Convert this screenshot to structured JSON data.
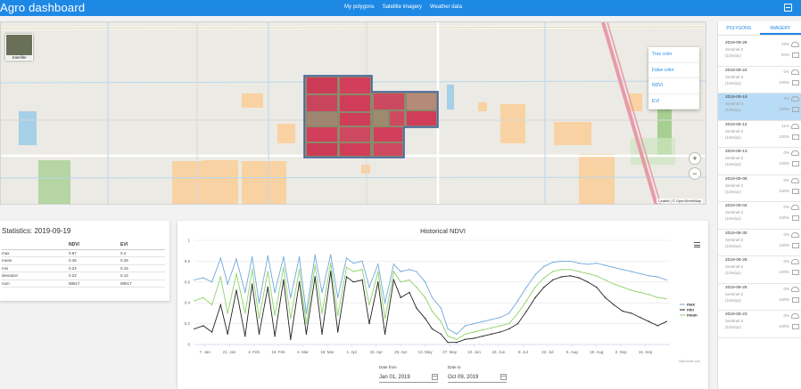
{
  "header": {
    "brand": "Agro dashboard",
    "nav": [
      "My polygons",
      "Satellite imagery",
      "Weather data"
    ],
    "exit_icon": "exit-icon"
  },
  "map": {
    "layer_thumb_label": "Satellite",
    "layers": [
      "True color",
      "False color",
      "NDVI",
      "EVI"
    ],
    "zoom_in": "+",
    "zoom_out": "−",
    "attribution": "Leaflet | © OpenStreetMap"
  },
  "sidebar": {
    "tabs": [
      "POLYGONS",
      "IMAGERY"
    ],
    "items": [
      {
        "date": "2019-09-28",
        "sat": "Sentinel-2",
        "res": "(10m/px)",
        "p1": "15%",
        "p2": "94%"
      },
      {
        "date": "2019-09-24",
        "sat": "Sentinel-2",
        "res": "(10m/px)",
        "p1": "0%",
        "p2": "100%"
      },
      {
        "date": "2019-09-19",
        "sat": "Sentinel-2",
        "res": "(10m/px)",
        "p1": "0%",
        "p2": "100%"
      },
      {
        "date": "2019-09-14",
        "sat": "Sentinel-2",
        "res": "(10m/px)",
        "p1": "11%",
        "p2": "100%"
      },
      {
        "date": "2019-09-13",
        "sat": "Sentinel-2",
        "res": "(10m/px)",
        "p1": "0%",
        "p2": "100%"
      },
      {
        "date": "2019-09-08",
        "sat": "Sentinel-2",
        "res": "(10m/px)",
        "p1": "0%",
        "p2": "100%"
      },
      {
        "date": "2019-09-04",
        "sat": "Sentinel-2",
        "res": "(10m/px)",
        "p1": "0%",
        "p2": "100%"
      },
      {
        "date": "2019-08-30",
        "sat": "Sentinel-2",
        "res": "(10m/px)",
        "p1": "0%",
        "p2": "100%"
      },
      {
        "date": "2019-08-28",
        "sat": "Sentinel-2",
        "res": "(10m/px)",
        "p1": "0%",
        "p2": "100%"
      },
      {
        "date": "2019-08-25",
        "sat": "Sentinel-2",
        "res": "(10m/px)",
        "p1": "0%",
        "p2": "100%"
      },
      {
        "date": "2019-08-23",
        "sat": "Sentinel-2",
        "res": "(10m/px)",
        "p1": "0%",
        "p2": "100%"
      }
    ]
  },
  "stats": {
    "title": "Statistics: 2019-09-19",
    "columns": [
      "",
      "NDVI",
      "EVI"
    ],
    "rows": [
      [
        "max",
        "0.87",
        "0.4"
      ],
      [
        "mean",
        "0.45",
        "0.25"
      ],
      [
        "min",
        "0.24",
        "0.15"
      ],
      [
        "deviation",
        "0.22",
        "0.12"
      ],
      [
        "num",
        "88517",
        "88517"
      ]
    ]
  },
  "chart_panel": {
    "title": "Historical NDVI",
    "credit": "Highcharts.com",
    "date_from_label": "Date from",
    "date_from": "Jan 01, 2019",
    "date_to_label": "Date to",
    "date_to": "Oct 09, 2019"
  },
  "chart_data": {
    "type": "line",
    "title": "Historical NDVI",
    "ylim": [
      0,
      1
    ],
    "yticks": [
      "0",
      "0.2",
      "0.4",
      "0.6",
      "0.8",
      "1"
    ],
    "xticks": [
      "7. Jan",
      "21. Jan",
      "4. Feb",
      "18. Feb",
      "4. Mar",
      "18. Mar",
      "1. Apr",
      "15. Apr",
      "29. Apr",
      "13. May",
      "27. May",
      "10. Jun",
      "24. Jun",
      "8. Jul",
      "22. Jul",
      "5. Aug",
      "19. Aug",
      "2. Sep",
      "16. Sep"
    ],
    "xrange": [
      0,
      272
    ],
    "grid": true,
    "legend": "right",
    "series": [
      {
        "name": "max",
        "color": "#6fa8dc",
        "points": [
          [
            0,
            0.62
          ],
          [
            5,
            0.64
          ],
          [
            10,
            0.6
          ],
          [
            15,
            0.83
          ],
          [
            19,
            0.58
          ],
          [
            24,
            0.82
          ],
          [
            29,
            0.5
          ],
          [
            33,
            0.84
          ],
          [
            37,
            0.4
          ],
          [
            42,
            0.85
          ],
          [
            46,
            0.5
          ],
          [
            51,
            0.84
          ],
          [
            55,
            0.45
          ],
          [
            60,
            0.84
          ],
          [
            64,
            0.3
          ],
          [
            69,
            0.86
          ],
          [
            73,
            0.5
          ],
          [
            78,
            0.86
          ],
          [
            82,
            0.45
          ],
          [
            87,
            0.83
          ],
          [
            91,
            0.78
          ],
          [
            96,
            0.8
          ],
          [
            100,
            0.55
          ],
          [
            105,
            0.77
          ],
          [
            109,
            0.4
          ],
          [
            114,
            0.77
          ],
          [
            118,
            0.7
          ],
          [
            123,
            0.72
          ],
          [
            127,
            0.7
          ],
          [
            132,
            0.6
          ],
          [
            136,
            0.45
          ],
          [
            141,
            0.35
          ],
          [
            145,
            0.15
          ],
          [
            150,
            0.1
          ],
          [
            155,
            0.18
          ],
          [
            160,
            0.2
          ],
          [
            165,
            0.22
          ],
          [
            170,
            0.24
          ],
          [
            175,
            0.26
          ],
          [
            180,
            0.3
          ],
          [
            185,
            0.42
          ],
          [
            190,
            0.55
          ],
          [
            195,
            0.67
          ],
          [
            200,
            0.75
          ],
          [
            205,
            0.79
          ],
          [
            210,
            0.8
          ],
          [
            215,
            0.8
          ],
          [
            220,
            0.78
          ],
          [
            225,
            0.77
          ],
          [
            230,
            0.78
          ],
          [
            235,
            0.76
          ],
          [
            240,
            0.74
          ],
          [
            245,
            0.72
          ],
          [
            250,
            0.7
          ],
          [
            255,
            0.68
          ],
          [
            260,
            0.66
          ],
          [
            265,
            0.65
          ],
          [
            270,
            0.62
          ]
        ]
      },
      {
        "name": "min",
        "color": "#222222",
        "points": [
          [
            0,
            0.15
          ],
          [
            5,
            0.18
          ],
          [
            10,
            0.12
          ],
          [
            15,
            0.38
          ],
          [
            19,
            0.1
          ],
          [
            24,
            0.52
          ],
          [
            29,
            0.08
          ],
          [
            33,
            0.58
          ],
          [
            37,
            0.1
          ],
          [
            42,
            0.55
          ],
          [
            46,
            0.08
          ],
          [
            51,
            0.62
          ],
          [
            55,
            0.05
          ],
          [
            60,
            0.6
          ],
          [
            64,
            0.1
          ],
          [
            69,
            0.65
          ],
          [
            73,
            0.1
          ],
          [
            78,
            0.7
          ],
          [
            82,
            0.12
          ],
          [
            87,
            0.65
          ],
          [
            91,
            0.6
          ],
          [
            96,
            0.62
          ],
          [
            100,
            0.2
          ],
          [
            105,
            0.6
          ],
          [
            109,
            0.1
          ],
          [
            114,
            0.62
          ],
          [
            118,
            0.45
          ],
          [
            123,
            0.5
          ],
          [
            127,
            0.35
          ],
          [
            132,
            0.25
          ],
          [
            136,
            0.15
          ],
          [
            141,
            0.1
          ],
          [
            145,
            0.02
          ],
          [
            150,
            0.02
          ],
          [
            155,
            0.05
          ],
          [
            160,
            0.06
          ],
          [
            165,
            0.08
          ],
          [
            170,
            0.1
          ],
          [
            175,
            0.12
          ],
          [
            180,
            0.15
          ],
          [
            185,
            0.2
          ],
          [
            190,
            0.32
          ],
          [
            195,
            0.45
          ],
          [
            200,
            0.55
          ],
          [
            205,
            0.62
          ],
          [
            210,
            0.65
          ],
          [
            215,
            0.66
          ],
          [
            220,
            0.64
          ],
          [
            225,
            0.6
          ],
          [
            230,
            0.55
          ],
          [
            235,
            0.45
          ],
          [
            240,
            0.38
          ],
          [
            245,
            0.32
          ],
          [
            250,
            0.3
          ],
          [
            255,
            0.26
          ],
          [
            260,
            0.22
          ],
          [
            265,
            0.18
          ],
          [
            270,
            0.22
          ]
        ]
      },
      {
        "name": "mean",
        "color": "#8fd36a",
        "points": [
          [
            0,
            0.42
          ],
          [
            5,
            0.45
          ],
          [
            10,
            0.38
          ],
          [
            15,
            0.65
          ],
          [
            19,
            0.3
          ],
          [
            24,
            0.68
          ],
          [
            29,
            0.3
          ],
          [
            33,
            0.72
          ],
          [
            37,
            0.25
          ],
          [
            42,
            0.7
          ],
          [
            46,
            0.28
          ],
          [
            51,
            0.74
          ],
          [
            55,
            0.25
          ],
          [
            60,
            0.72
          ],
          [
            64,
            0.2
          ],
          [
            69,
            0.76
          ],
          [
            73,
            0.3
          ],
          [
            78,
            0.78
          ],
          [
            82,
            0.28
          ],
          [
            87,
            0.74
          ],
          [
            91,
            0.7
          ],
          [
            96,
            0.72
          ],
          [
            100,
            0.38
          ],
          [
            105,
            0.7
          ],
          [
            109,
            0.25
          ],
          [
            114,
            0.7
          ],
          [
            118,
            0.6
          ],
          [
            123,
            0.62
          ],
          [
            127,
            0.55
          ],
          [
            132,
            0.45
          ],
          [
            136,
            0.32
          ],
          [
            141,
            0.22
          ],
          [
            145,
            0.08
          ],
          [
            150,
            0.05
          ],
          [
            155,
            0.1
          ],
          [
            160,
            0.12
          ],
          [
            165,
            0.14
          ],
          [
            170,
            0.16
          ],
          [
            175,
            0.18
          ],
          [
            180,
            0.2
          ],
          [
            185,
            0.3
          ],
          [
            190,
            0.42
          ],
          [
            195,
            0.55
          ],
          [
            200,
            0.64
          ],
          [
            205,
            0.7
          ],
          [
            210,
            0.72
          ],
          [
            215,
            0.72
          ],
          [
            220,
            0.7
          ],
          [
            225,
            0.68
          ],
          [
            230,
            0.66
          ],
          [
            235,
            0.62
          ],
          [
            240,
            0.58
          ],
          [
            245,
            0.55
          ],
          [
            250,
            0.52
          ],
          [
            255,
            0.5
          ],
          [
            260,
            0.48
          ],
          [
            265,
            0.45
          ],
          [
            270,
            0.44
          ]
        ]
      }
    ]
  }
}
